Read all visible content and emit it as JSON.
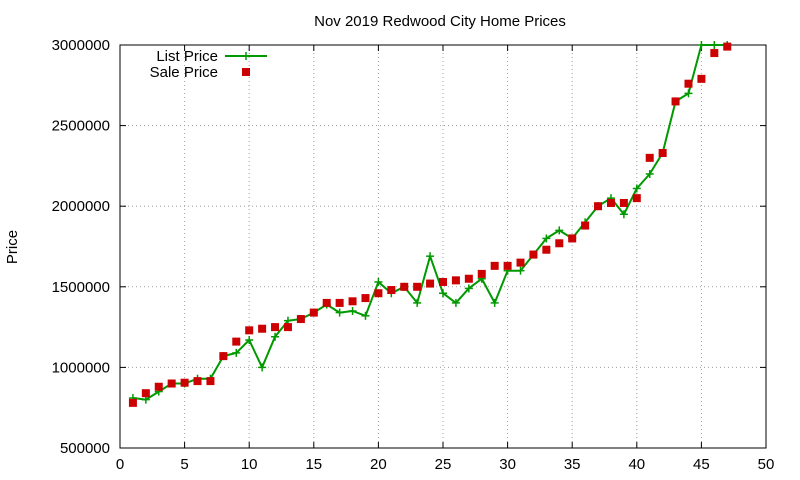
{
  "chart_data": {
    "type": "line",
    "title": "Nov 2019 Redwood City Home Prices",
    "xlabel": "",
    "ylabel": "Price",
    "xlim": [
      0,
      50
    ],
    "ylim": [
      500000,
      3000000
    ],
    "xticks": [
      0,
      5,
      10,
      15,
      20,
      25,
      30,
      35,
      40,
      45,
      50
    ],
    "yticks": [
      500000,
      1000000,
      1500000,
      2000000,
      2500000,
      3000000
    ],
    "grid": true,
    "legend": "top-left",
    "colors": {
      "list": "#009900",
      "sale": "#cc0000"
    },
    "series": [
      {
        "name": "List Price",
        "style": "linespoints",
        "x": [
          1,
          2,
          3,
          4,
          5,
          6,
          7,
          8,
          9,
          10,
          11,
          12,
          13,
          14,
          15,
          16,
          17,
          18,
          19,
          20,
          21,
          22,
          23,
          24,
          25,
          26,
          27,
          28,
          29,
          30,
          31,
          32,
          33,
          34,
          35,
          36,
          37,
          38,
          39,
          40,
          41,
          42,
          43,
          44,
          45,
          46,
          47
        ],
        "y": [
          810000,
          800000,
          850000,
          900000,
          900000,
          930000,
          930000,
          1070000,
          1090000,
          1170000,
          1000000,
          1190000,
          1290000,
          1300000,
          1340000,
          1390000,
          1340000,
          1350000,
          1320000,
          1530000,
          1460000,
          1500000,
          1400000,
          1690000,
          1460000,
          1400000,
          1490000,
          1550000,
          1400000,
          1600000,
          1600000,
          1700000,
          1800000,
          1850000,
          1800000,
          1900000,
          2000000,
          2050000,
          1950000,
          2110000,
          2200000,
          2330000,
          2650000,
          2700000,
          3000000,
          3000000,
          3000000
        ]
      },
      {
        "name": "Sale Price",
        "style": "points",
        "x": [
          1,
          2,
          3,
          4,
          5,
          6,
          7,
          8,
          9,
          10,
          11,
          12,
          13,
          14,
          15,
          16,
          17,
          18,
          19,
          20,
          21,
          22,
          23,
          24,
          25,
          26,
          27,
          28,
          29,
          30,
          31,
          32,
          33,
          34,
          35,
          36,
          37,
          38,
          39,
          40,
          41,
          42,
          43,
          44,
          45,
          46,
          47
        ],
        "y": [
          780000,
          840000,
          880000,
          900000,
          905000,
          915000,
          915000,
          1070000,
          1160000,
          1230000,
          1240000,
          1250000,
          1250000,
          1300000,
          1340000,
          1400000,
          1400000,
          1410000,
          1430000,
          1460000,
          1480000,
          1500000,
          1500000,
          1520000,
          1530000,
          1540000,
          1550000,
          1580000,
          1630000,
          1630000,
          1650000,
          1700000,
          1730000,
          1770000,
          1800000,
          1880000,
          2000000,
          2020000,
          2020000,
          2050000,
          2300000,
          2330000,
          2650000,
          2760000,
          2790000,
          2950000,
          2990000
        ]
      }
    ]
  }
}
